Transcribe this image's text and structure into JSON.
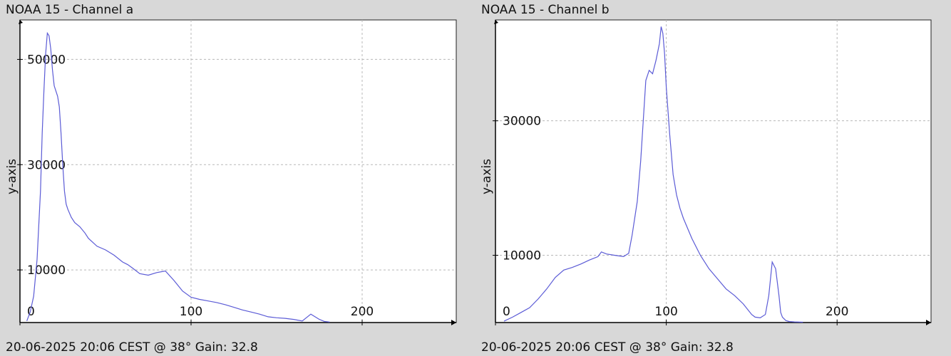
{
  "chart_data": [
    {
      "type": "line",
      "title": "NOAA 15 - Channel a",
      "footer": "20-06-2025 20:06 CEST @ 38° Gain: 32.8",
      "ylabel": "y-axis",
      "xlabel": "",
      "x_ticks": [
        "0",
        "100",
        "200"
      ],
      "y_ticks": [
        "10000",
        "30000",
        "50000"
      ],
      "xlim": [
        0,
        255
      ],
      "ylim": [
        0,
        57500
      ],
      "grid": true,
      "line_color": "#5b5bd6",
      "series": [
        {
          "x": [
            4,
            6,
            8,
            10,
            12,
            13,
            14,
            15,
            16,
            17,
            18,
            19,
            20,
            21,
            22,
            23,
            24,
            25,
            26,
            27,
            28,
            30,
            32,
            35,
            38,
            40,
            45,
            50,
            55,
            60,
            63,
            66,
            70,
            75,
            80,
            85,
            90,
            95,
            100,
            105,
            110,
            115,
            120,
            125,
            130,
            135,
            140,
            145,
            150,
            155,
            160,
            165,
            170,
            175,
            178,
            181
          ],
          "values": [
            300,
            2000,
            5000,
            12000,
            25000,
            36000,
            44000,
            51000,
            55000,
            54500,
            52000,
            48000,
            45000,
            44000,
            43000,
            41000,
            36000,
            30000,
            25000,
            22500,
            21500,
            20000,
            19000,
            18200,
            17000,
            16000,
            14500,
            13800,
            12800,
            11500,
            11000,
            10300,
            9300,
            9000,
            9500,
            9800,
            8000,
            6000,
            4800,
            4400,
            4100,
            3800,
            3400,
            2900,
            2400,
            2000,
            1600,
            1100,
            900,
            800,
            600,
            300,
            1600,
            600,
            200,
            100
          ]
        }
      ]
    },
    {
      "type": "line",
      "title": "NOAA 15 - Channel b",
      "footer": "20-06-2025 20:06 CEST @ 38° Gain: 32.8",
      "ylabel": "y-axis",
      "xlabel": "",
      "x_ticks": [
        "0",
        "100",
        "200"
      ],
      "y_ticks": [
        "10000",
        "30000"
      ],
      "xlim": [
        0,
        255
      ],
      "ylim": [
        0,
        45000
      ],
      "grid": true,
      "line_color": "#5b5bd6",
      "series": [
        {
          "x": [
            5,
            10,
            15,
            20,
            25,
            30,
            35,
            40,
            45,
            50,
            55,
            60,
            62,
            65,
            70,
            75,
            78,
            80,
            83,
            85,
            87,
            88,
            90,
            92,
            94,
            96,
            97,
            98,
            99,
            100,
            102,
            104,
            106,
            108,
            110,
            115,
            120,
            125,
            130,
            135,
            140,
            145,
            150,
            152,
            155,
            158,
            160,
            162,
            164,
            166,
            167,
            168,
            170,
            172,
            175,
            180
          ],
          "values": [
            200,
            800,
            1500,
            2200,
            3500,
            5000,
            6700,
            7800,
            8200,
            8700,
            9300,
            9800,
            10500,
            10200,
            10000,
            9800,
            10300,
            13000,
            18000,
            24000,
            32000,
            36000,
            37500,
            37000,
            39000,
            41500,
            44000,
            43000,
            40000,
            35000,
            28000,
            22000,
            19000,
            17000,
            15500,
            12500,
            10000,
            8000,
            6500,
            5000,
            4000,
            2800,
            1200,
            800,
            700,
            1200,
            4000,
            9000,
            8000,
            4000,
            1500,
            800,
            300,
            150,
            100,
            50
          ]
        }
      ]
    }
  ]
}
